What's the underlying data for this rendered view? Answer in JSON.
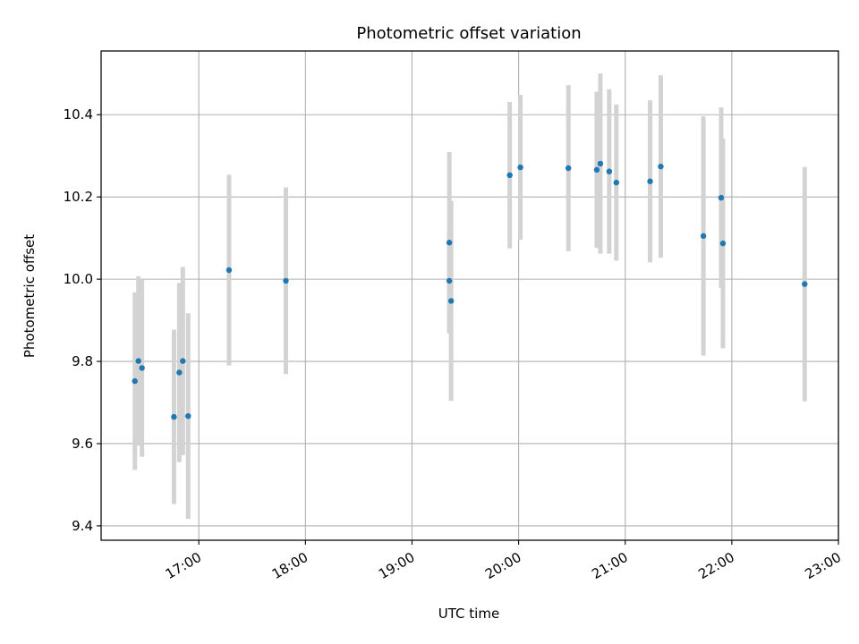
{
  "chart_data": {
    "type": "scatter",
    "title": "Photometric offset variation",
    "xlabel": "UTC time",
    "ylabel": "Photometric offset",
    "x_axis": "time",
    "xlim": [
      "16:05",
      "23:00"
    ],
    "ylim": [
      9.365,
      10.555
    ],
    "x_ticks": [
      "17:00",
      "18:00",
      "19:00",
      "20:00",
      "21:00",
      "22:00",
      "23:00"
    ],
    "y_ticks": [
      9.4,
      9.6,
      9.8,
      10.0,
      10.2,
      10.4
    ],
    "y_tick_labels": [
      "9.4",
      "9.6",
      "9.8",
      "10.0",
      "10.2",
      "10.4"
    ],
    "grid": true,
    "legend": "none",
    "colors": {
      "point": "#1f77b4",
      "errorbar": "#d3d3d3",
      "grid": "#b0b0b0"
    },
    "series": [
      {
        "points": [
          {
            "x": "16:24",
            "y": 9.752,
            "err": 0.216
          },
          {
            "x": "16:26",
            "y": 9.801,
            "err": 0.206
          },
          {
            "x": "16:28",
            "y": 9.784,
            "err": 0.216
          },
          {
            "x": "16:46",
            "y": 9.665,
            "err": 0.212
          },
          {
            "x": "16:49",
            "y": 9.773,
            "err": 0.218
          },
          {
            "x": "16:51",
            "y": 9.801,
            "err": 0.229
          },
          {
            "x": "16:54",
            "y": 9.667,
            "err": 0.25
          },
          {
            "x": "17:17",
            "y": 10.022,
            "err": 0.232
          },
          {
            "x": "17:49",
            "y": 9.996,
            "err": 0.227
          },
          {
            "x": "19:21",
            "y": 10.089,
            "err": 0.22
          },
          {
            "x": "19:21",
            "y": 9.996,
            "err": 0.128
          },
          {
            "x": "19:22",
            "y": 9.947,
            "err": 0.243
          },
          {
            "x": "19:55",
            "y": 10.253,
            "err": 0.178
          },
          {
            "x": "20:01",
            "y": 10.272,
            "err": 0.176
          },
          {
            "x": "20:28",
            "y": 10.27,
            "err": 0.202
          },
          {
            "x": "20:44",
            "y": 10.266,
            "err": 0.19
          },
          {
            "x": "20:46",
            "y": 10.281,
            "err": 0.219
          },
          {
            "x": "20:51",
            "y": 10.262,
            "err": 0.2
          },
          {
            "x": "20:55",
            "y": 10.235,
            "err": 0.19
          },
          {
            "x": "21:14",
            "y": 10.238,
            "err": 0.197
          },
          {
            "x": "21:20",
            "y": 10.274,
            "err": 0.222
          },
          {
            "x": "21:44",
            "y": 10.105,
            "err": 0.291
          },
          {
            "x": "21:54",
            "y": 10.198,
            "err": 0.22
          },
          {
            "x": "21:55",
            "y": 10.087,
            "err": 0.255
          },
          {
            "x": "22:41",
            "y": 9.988,
            "err": 0.285
          }
        ]
      }
    ]
  }
}
